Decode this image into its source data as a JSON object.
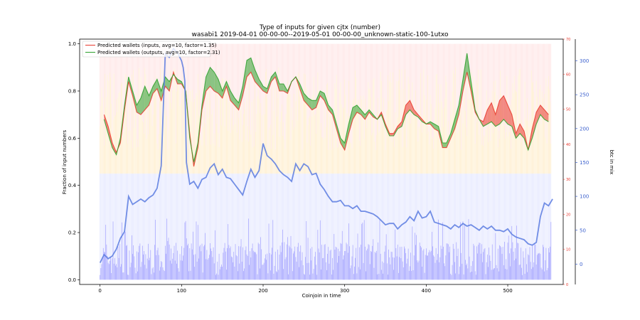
{
  "chart_data": {
    "type": "line",
    "title": "Type of inputs for given cjtx (number)",
    "subtitle": "wasabi1 2019-04-01 00-00-00--2019-05-01 00-00-00_unknown-static-100-1utxo",
    "xlabel": "Coinjoin in time",
    "ylabel": "Fraction of input numbers",
    "ylabel_right_outer": "btc in mix",
    "xlim": [
      -25,
      568
    ],
    "ylim": [
      -0.02,
      1.02
    ],
    "xticks": [
      "0",
      "100",
      "200",
      "300",
      "400",
      "500"
    ],
    "yticks": [
      "0.0",
      "0.2",
      "0.4",
      "0.6",
      "0.8",
      "1.0"
    ],
    "y2lim": [
      0,
      70
    ],
    "y2ticks": [
      "0",
      "10",
      "20",
      "30",
      "40",
      "50",
      "60",
      "70"
    ],
    "y3lim": [
      -30,
      332
    ],
    "y3ticks": [
      "0",
      "50",
      "100",
      "150",
      "200",
      "250",
      "300"
    ],
    "legend_position": "top-left",
    "grid": false,
    "colors": {
      "inputs_line": "#e8372c",
      "outputs_line": "#2ca02c",
      "btc_line": "#5a7be0",
      "bars_blue": "#6d6dff",
      "bars_orange": "#ffcc66",
      "bars_pink": "#ffb3b3"
    },
    "series": [
      {
        "name": "Predicted wallets (inputs, avg=10, factor=1.35)",
        "x": [
          5,
          10,
          15,
          20,
          25,
          30,
          35,
          40,
          45,
          50,
          55,
          60,
          65,
          70,
          75,
          80,
          85,
          90,
          95,
          100,
          105,
          110,
          115,
          120,
          125,
          130,
          135,
          140,
          145,
          150,
          155,
          160,
          165,
          170,
          175,
          180,
          185,
          190,
          195,
          200,
          205,
          210,
          215,
          220,
          225,
          230,
          235,
          240,
          245,
          250,
          255,
          260,
          265,
          270,
          275,
          280,
          285,
          290,
          295,
          300,
          305,
          310,
          315,
          320,
          325,
          330,
          335,
          340,
          345,
          350,
          355,
          360,
          365,
          370,
          375,
          380,
          385,
          390,
          395,
          400,
          405,
          410,
          415,
          420,
          425,
          430,
          435,
          440,
          445,
          450,
          455,
          460,
          465,
          470,
          475,
          480,
          485,
          490,
          495,
          500,
          505,
          510,
          515,
          520,
          525,
          530,
          535,
          540,
          545,
          550
        ],
        "values": [
          0.7,
          0.65,
          0.58,
          0.54,
          0.58,
          0.72,
          0.84,
          0.78,
          0.71,
          0.7,
          0.72,
          0.74,
          0.79,
          0.81,
          0.76,
          0.82,
          0.8,
          0.88,
          0.83,
          0.83,
          0.8,
          0.62,
          0.48,
          0.56,
          0.72,
          0.8,
          0.82,
          0.8,
          0.79,
          0.77,
          0.82,
          0.76,
          0.74,
          0.72,
          0.78,
          0.86,
          0.88,
          0.84,
          0.82,
          0.8,
          0.79,
          0.84,
          0.86,
          0.8,
          0.8,
          0.79,
          0.84,
          0.86,
          0.81,
          0.76,
          0.74,
          0.72,
          0.73,
          0.78,
          0.76,
          0.72,
          0.7,
          0.64,
          0.58,
          0.55,
          0.62,
          0.68,
          0.71,
          0.7,
          0.68,
          0.71,
          0.69,
          0.68,
          0.71,
          0.66,
          0.62,
          0.62,
          0.65,
          0.67,
          0.74,
          0.76,
          0.72,
          0.7,
          0.68,
          0.66,
          0.66,
          0.64,
          0.63,
          0.56,
          0.56,
          0.6,
          0.64,
          0.7,
          0.8,
          0.88,
          0.8,
          0.71,
          0.68,
          0.67,
          0.72,
          0.75,
          0.7,
          0.76,
          0.78,
          0.74,
          0.7,
          0.62,
          0.66,
          0.63,
          0.55,
          0.64,
          0.71,
          0.74,
          0.72,
          0.7
        ]
      },
      {
        "name": "Predicted wallets (outputs, avg=10, factor=2.31)",
        "x": [
          5,
          10,
          15,
          20,
          25,
          30,
          35,
          40,
          45,
          50,
          55,
          60,
          65,
          70,
          75,
          80,
          85,
          90,
          95,
          100,
          105,
          110,
          115,
          120,
          125,
          130,
          135,
          140,
          145,
          150,
          155,
          160,
          165,
          170,
          175,
          180,
          185,
          190,
          195,
          200,
          205,
          210,
          215,
          220,
          225,
          230,
          235,
          240,
          245,
          250,
          255,
          260,
          265,
          270,
          275,
          280,
          285,
          290,
          295,
          300,
          305,
          310,
          315,
          320,
          325,
          330,
          335,
          340,
          345,
          350,
          355,
          360,
          365,
          370,
          375,
          380,
          385,
          390,
          395,
          400,
          405,
          410,
          415,
          420,
          425,
          430,
          435,
          440,
          445,
          450,
          455,
          460,
          465,
          470,
          475,
          480,
          485,
          490,
          495,
          500,
          505,
          510,
          515,
          520,
          525,
          530,
          535,
          540,
          545,
          550
        ],
        "values": [
          0.68,
          0.62,
          0.56,
          0.53,
          0.6,
          0.74,
          0.86,
          0.8,
          0.74,
          0.77,
          0.82,
          0.78,
          0.82,
          0.85,
          0.8,
          0.86,
          0.84,
          0.87,
          0.85,
          0.84,
          0.8,
          0.6,
          0.5,
          0.58,
          0.74,
          0.86,
          0.9,
          0.88,
          0.85,
          0.8,
          0.84,
          0.8,
          0.77,
          0.75,
          0.82,
          0.93,
          0.94,
          0.89,
          0.85,
          0.82,
          0.81,
          0.86,
          0.88,
          0.83,
          0.83,
          0.8,
          0.84,
          0.86,
          0.83,
          0.79,
          0.77,
          0.76,
          0.76,
          0.8,
          0.79,
          0.74,
          0.72,
          0.66,
          0.6,
          0.58,
          0.66,
          0.73,
          0.74,
          0.72,
          0.7,
          0.72,
          0.7,
          0.68,
          0.7,
          0.65,
          0.61,
          0.61,
          0.64,
          0.65,
          0.7,
          0.72,
          0.7,
          0.69,
          0.67,
          0.66,
          0.67,
          0.66,
          0.65,
          0.58,
          0.58,
          0.62,
          0.68,
          0.74,
          0.85,
          0.96,
          0.84,
          0.72,
          0.68,
          0.65,
          0.66,
          0.67,
          0.65,
          0.66,
          0.68,
          0.66,
          0.65,
          0.6,
          0.62,
          0.6,
          0.55,
          0.6,
          0.66,
          0.7,
          0.68,
          0.67
        ]
      },
      {
        "name": "btc in mix",
        "axis": "right_outer",
        "x": [
          0,
          5,
          10,
          15,
          20,
          25,
          30,
          35,
          40,
          45,
          50,
          55,
          60,
          65,
          70,
          75,
          80,
          85,
          90,
          95,
          100,
          102,
          104,
          106,
          110,
          115,
          120,
          125,
          130,
          135,
          140,
          145,
          150,
          155,
          160,
          165,
          170,
          175,
          180,
          185,
          190,
          195,
          200,
          205,
          210,
          215,
          220,
          225,
          230,
          235,
          240,
          245,
          250,
          255,
          260,
          265,
          270,
          275,
          280,
          285,
          290,
          295,
          300,
          305,
          310,
          315,
          320,
          325,
          330,
          335,
          340,
          345,
          350,
          355,
          360,
          365,
          370,
          375,
          380,
          385,
          390,
          395,
          400,
          405,
          410,
          415,
          420,
          425,
          430,
          435,
          440,
          445,
          450,
          455,
          460,
          465,
          470,
          475,
          480,
          485,
          490,
          495,
          500,
          505,
          510,
          515,
          520,
          525,
          530,
          535,
          540,
          545,
          550,
          555
        ],
        "values": [
          2,
          14,
          8,
          12,
          22,
          38,
          48,
          100,
          88,
          92,
          96,
          92,
          98,
          102,
          112,
          145,
          310,
          305,
          318,
          312,
          300,
          290,
          270,
          150,
          118,
          122,
          112,
          125,
          128,
          142,
          148,
          132,
          140,
          128,
          126,
          118,
          110,
          102,
          122,
          140,
          128,
          138,
          178,
          160,
          155,
          148,
          138,
          132,
          128,
          122,
          148,
          138,
          148,
          144,
          132,
          134,
          118,
          110,
          100,
          92,
          92,
          94,
          86,
          86,
          82,
          86,
          78,
          78,
          76,
          74,
          70,
          64,
          58,
          60,
          60,
          52,
          58,
          62,
          70,
          64,
          78,
          68,
          70,
          78,
          62,
          60,
          58,
          56,
          52,
          58,
          54,
          60,
          56,
          58,
          54,
          50,
          56,
          52,
          56,
          50,
          50,
          48,
          52,
          44,
          40,
          38,
          36,
          30,
          28,
          32,
          70,
          90,
          86,
          96
        ]
      }
    ]
  }
}
